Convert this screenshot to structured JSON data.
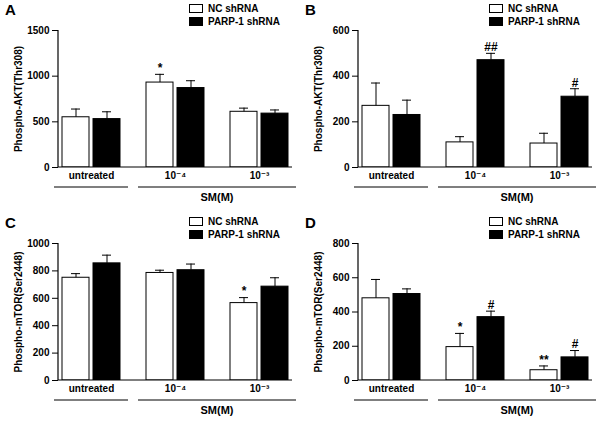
{
  "chart_data": [
    {
      "panel": "A",
      "type": "bar",
      "categories": [
        "untreated",
        "10⁻⁴",
        "10⁻³"
      ],
      "xlabel": "SM(M)",
      "ylabel": "Phospho-AKT(Thr308)",
      "ylim": [
        0,
        1500
      ],
      "yticks": [
        0,
        500,
        1000,
        1500
      ],
      "legend": "upper right",
      "series": [
        {
          "name": "NC shRNA",
          "color": "#ffffff",
          "values": [
            550,
            930,
            610
          ],
          "errors": [
            90,
            90,
            40
          ],
          "significance": [
            null,
            "*",
            null
          ]
        },
        {
          "name": "PARP-1 shRNA",
          "color": "#000000",
          "values": [
            530,
            870,
            590
          ],
          "errors": [
            80,
            80,
            40
          ],
          "significance": [
            null,
            null,
            null
          ]
        }
      ]
    },
    {
      "panel": "B",
      "type": "bar",
      "categories": [
        "untreated",
        "10⁻⁴",
        "10⁻³"
      ],
      "xlabel": "SM(M)",
      "ylabel": "Phospho-AKT(Thr308)",
      "ylim": [
        0,
        600
      ],
      "yticks": [
        0,
        200,
        400,
        600
      ],
      "legend": "upper right",
      "series": [
        {
          "name": "NC shRNA",
          "color": "#ffffff",
          "values": [
            270,
            110,
            105
          ],
          "errors": [
            100,
            25,
            45
          ],
          "significance": [
            null,
            null,
            null
          ]
        },
        {
          "name": "PARP-1 shRNA",
          "color": "#000000",
          "values": [
            230,
            470,
            310
          ],
          "errors": [
            65,
            30,
            35
          ],
          "significance": [
            null,
            "##",
            "#"
          ]
        }
      ]
    },
    {
      "panel": "C",
      "type": "bar",
      "categories": [
        "untreated",
        "10⁻⁴",
        "10⁻³"
      ],
      "xlabel": "SM(M)",
      "ylabel": "Phospho-mTOR(Ser2448)",
      "ylim": [
        0,
        1000
      ],
      "yticks": [
        0,
        200,
        400,
        600,
        800,
        1000
      ],
      "legend": "upper right",
      "series": [
        {
          "name": "NC shRNA",
          "color": "#ffffff",
          "values": [
            750,
            785,
            565
          ],
          "errors": [
            30,
            20,
            40
          ],
          "significance": [
            null,
            null,
            "*"
          ]
        },
        {
          "name": "PARP-1 shRNA",
          "color": "#000000",
          "values": [
            855,
            805,
            685
          ],
          "errors": [
            60,
            45,
            65
          ],
          "significance": [
            null,
            null,
            null
          ]
        }
      ]
    },
    {
      "panel": "D",
      "type": "bar",
      "categories": [
        "untreated",
        "10⁻⁴",
        "10⁻³"
      ],
      "xlabel": "SM(M)",
      "ylabel": "Phospho-mTOR(Ser2448)",
      "ylim": [
        0,
        800
      ],
      "yticks": [
        0,
        200,
        400,
        600,
        800
      ],
      "legend": "upper right",
      "series": [
        {
          "name": "NC shRNA",
          "color": "#ffffff",
          "values": [
            480,
            195,
            60
          ],
          "errors": [
            110,
            80,
            25
          ],
          "significance": [
            null,
            "*",
            "**"
          ]
        },
        {
          "name": "PARP-1 shRNA",
          "color": "#000000",
          "values": [
            505,
            370,
            135
          ],
          "errors": [
            30,
            35,
            40
          ],
          "significance": [
            null,
            "#",
            "#"
          ]
        }
      ]
    }
  ]
}
